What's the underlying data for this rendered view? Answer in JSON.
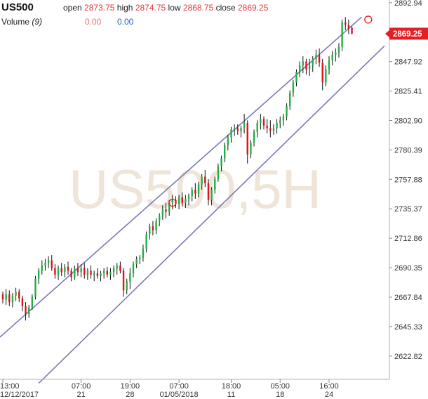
{
  "header": {
    "symbol": "US500",
    "open_label": "open",
    "open_value": "2873.75",
    "high_label": "high",
    "high_value": "2874.75",
    "low_label": "low",
    "low_value": "2868.75",
    "close_label": "close",
    "close_value": "2869.25",
    "volume_label": "Volume",
    "volume_period": "(9)",
    "volume_value_1": "0.00",
    "volume_value_2": "0.00"
  },
  "watermark": "US500,5H",
  "colors": {
    "up": "#1fb141",
    "down": "#e0101c",
    "channel": "#7b78b8",
    "price_box": "#e31e24",
    "marker": "#e31e24"
  },
  "chart_data": {
    "type": "candlestick",
    "title": "",
    "ylim": [
      2605,
      2895
    ],
    "y_ticks": [
      "2892.94",
      "2870.43",
      "2847.92",
      "2825.41",
      "2802.90",
      "2780.39",
      "2757.88",
      "2735.37",
      "2712.86",
      "2690.35",
      "2667.84",
      "2645.33",
      "2622.82"
    ],
    "x_ticks": [
      {
        "top": "13:00",
        "bottom": "12/12/2017",
        "bar": 0
      },
      {
        "top": "07:00",
        "bottom": "21",
        "bar": 24
      },
      {
        "top": "19:00",
        "bottom": "28",
        "bar": 39
      },
      {
        "top": "07:00",
        "bottom": "01/05/2018",
        "bar": 54
      },
      {
        "top": "18:00",
        "bottom": "11",
        "bar": 70
      },
      {
        "top": "05:00",
        "bottom": "18",
        "bar": 85
      },
      {
        "top": "16:00",
        "bottom": "24",
        "bar": 100
      }
    ],
    "last_price": "2869.25",
    "channel": {
      "upper": [
        {
          "bar": -1,
          "price": 2637
        },
        {
          "bar": 110,
          "price": 2882
        }
      ],
      "lower": [
        {
          "bar": 11,
          "price": 2602
        },
        {
          "bar": 117,
          "price": 2860
        }
      ]
    },
    "markers": [
      {
        "bar": 52,
        "price": 2740
      },
      {
        "bar": 112,
        "price": 2880
      }
    ],
    "candles": [
      [
        2670,
        2672,
        2663,
        2666
      ],
      [
        2666,
        2674,
        2662,
        2670
      ],
      [
        2670,
        2673,
        2661,
        2664
      ],
      [
        2664,
        2671,
        2660,
        2669
      ],
      [
        2669,
        2675,
        2665,
        2672
      ],
      [
        2672,
        2674,
        2664,
        2667
      ],
      [
        2667,
        2669,
        2657,
        2661
      ],
      [
        2661,
        2664,
        2650,
        2655
      ],
      [
        2655,
        2662,
        2652,
        2660
      ],
      [
        2660,
        2670,
        2658,
        2668
      ],
      [
        2668,
        2684,
        2666,
        2682
      ],
      [
        2682,
        2690,
        2678,
        2688
      ],
      [
        2688,
        2696,
        2685,
        2692
      ],
      [
        2692,
        2697,
        2688,
        2694
      ],
      [
        2694,
        2699,
        2690,
        2696
      ],
      [
        2696,
        2700,
        2688,
        2690
      ],
      [
        2690,
        2693,
        2682,
        2685
      ],
      [
        2685,
        2692,
        2681,
        2690
      ],
      [
        2690,
        2694,
        2684,
        2687
      ],
      [
        2687,
        2693,
        2683,
        2691
      ],
      [
        2691,
        2695,
        2685,
        2688
      ],
      [
        2688,
        2690,
        2680,
        2683
      ],
      [
        2683,
        2692,
        2681,
        2690
      ],
      [
        2690,
        2694,
        2684,
        2687
      ],
      [
        2687,
        2693,
        2683,
        2690
      ],
      [
        2690,
        2694,
        2682,
        2685
      ],
      [
        2685,
        2690,
        2681,
        2688
      ],
      [
        2688,
        2692,
        2682,
        2685
      ],
      [
        2685,
        2688,
        2680,
        2686
      ],
      [
        2686,
        2690,
        2682,
        2684
      ],
      [
        2684,
        2688,
        2680,
        2686
      ],
      [
        2686,
        2690,
        2682,
        2688
      ],
      [
        2688,
        2691,
        2683,
        2685
      ],
      [
        2685,
        2690,
        2681,
        2687
      ],
      [
        2687,
        2692,
        2683,
        2690
      ],
      [
        2690,
        2694,
        2685,
        2692
      ],
      [
        2692,
        2695,
        2686,
        2688
      ],
      [
        2688,
        2690,
        2668,
        2673
      ],
      [
        2673,
        2682,
        2670,
        2680
      ],
      [
        2680,
        2690,
        2674,
        2686
      ],
      [
        2686,
        2695,
        2683,
        2693
      ],
      [
        2693,
        2699,
        2690,
        2697
      ],
      [
        2697,
        2700,
        2693,
        2698
      ],
      [
        2698,
        2708,
        2695,
        2705
      ],
      [
        2705,
        2718,
        2702,
        2716
      ],
      [
        2716,
        2724,
        2712,
        2722
      ],
      [
        2722,
        2726,
        2715,
        2719
      ],
      [
        2719,
        2728,
        2716,
        2726
      ],
      [
        2726,
        2732,
        2722,
        2730
      ],
      [
        2730,
        2738,
        2727,
        2735
      ],
      [
        2735,
        2740,
        2728,
        2733
      ],
      [
        2733,
        2742,
        2730,
        2740
      ],
      [
        2740,
        2746,
        2735,
        2742
      ],
      [
        2742,
        2745,
        2736,
        2739
      ],
      [
        2739,
        2746,
        2735,
        2744
      ],
      [
        2744,
        2748,
        2737,
        2740
      ],
      [
        2740,
        2746,
        2736,
        2743
      ],
      [
        2743,
        2747,
        2738,
        2745
      ],
      [
        2745,
        2752,
        2741,
        2750
      ],
      [
        2750,
        2755,
        2743,
        2747
      ],
      [
        2747,
        2756,
        2744,
        2754
      ],
      [
        2754,
        2762,
        2750,
        2760
      ],
      [
        2760,
        2765,
        2752,
        2755
      ],
      [
        2755,
        2758,
        2738,
        2742
      ],
      [
        2742,
        2752,
        2738,
        2750
      ],
      [
        2750,
        2760,
        2747,
        2758
      ],
      [
        2758,
        2770,
        2756,
        2768
      ],
      [
        2768,
        2776,
        2764,
        2774
      ],
      [
        2774,
        2786,
        2771,
        2784
      ],
      [
        2784,
        2792,
        2780,
        2790
      ],
      [
        2790,
        2798,
        2786,
        2796
      ],
      [
        2796,
        2800,
        2791,
        2797
      ],
      [
        2797,
        2800,
        2792,
        2795
      ],
      [
        2795,
        2799,
        2790,
        2797
      ],
      [
        2797,
        2808,
        2793,
        2801
      ],
      [
        2801,
        2803,
        2770,
        2777
      ],
      [
        2777,
        2788,
        2774,
        2786
      ],
      [
        2786,
        2796,
        2783,
        2794
      ],
      [
        2794,
        2803,
        2790,
        2801
      ],
      [
        2801,
        2808,
        2796,
        2804
      ],
      [
        2804,
        2806,
        2796,
        2799
      ],
      [
        2799,
        2804,
        2793,
        2797
      ],
      [
        2797,
        2803,
        2790,
        2795
      ],
      [
        2795,
        2800,
        2792,
        2797
      ],
      [
        2797,
        2804,
        2793,
        2801
      ],
      [
        2801,
        2806,
        2797,
        2803
      ],
      [
        2803,
        2808,
        2799,
        2806
      ],
      [
        2806,
        2816,
        2803,
        2814
      ],
      [
        2814,
        2826,
        2811,
        2824
      ],
      [
        2824,
        2834,
        2821,
        2832
      ],
      [
        2832,
        2842,
        2829,
        2840
      ],
      [
        2840,
        2848,
        2836,
        2845
      ],
      [
        2845,
        2852,
        2839,
        2848
      ],
      [
        2848,
        2850,
        2838,
        2842
      ],
      [
        2842,
        2850,
        2837,
        2845
      ],
      [
        2845,
        2852,
        2840,
        2850
      ],
      [
        2850,
        2857,
        2846,
        2853
      ],
      [
        2853,
        2858,
        2844,
        2847
      ],
      [
        2847,
        2850,
        2826,
        2832
      ],
      [
        2832,
        2845,
        2829,
        2842
      ],
      [
        2842,
        2852,
        2838,
        2849
      ],
      [
        2849,
        2856,
        2845,
        2853
      ],
      [
        2853,
        2858,
        2848,
        2855
      ],
      [
        2855,
        2862,
        2851,
        2859
      ],
      [
        2859,
        2880,
        2856,
        2878
      ],
      [
        2878,
        2882,
        2872,
        2876
      ],
      [
        2876,
        2880,
        2869,
        2873
      ],
      [
        2873.75,
        2874.75,
        2868.75,
        2869.25
      ]
    ]
  }
}
